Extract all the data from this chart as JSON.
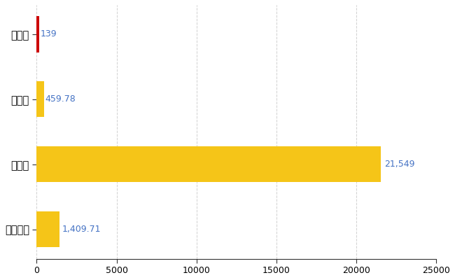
{
  "categories": [
    "別海町",
    "県平均",
    "県最大",
    "全国平均"
  ],
  "values": [
    139,
    459.78,
    21549,
    1409.71
  ],
  "bar_colors": [
    "#cc0000",
    "#f5c518",
    "#f5c518",
    "#f5c518"
  ],
  "bar_height": 0.55,
  "xlim": [
    0,
    25000
  ],
  "xticks": [
    0,
    5000,
    10000,
    15000,
    20000,
    25000
  ],
  "xtick_labels": [
    "0",
    "5000",
    "10000",
    "15000",
    "20000",
    "25000"
  ],
  "value_labels": [
    "139",
    "459.78",
    "21,549",
    "1,409.71"
  ],
  "value_label_color": "#4472c4",
  "grid_color": "#cccccc",
  "background_color": "#ffffff",
  "label_fontsize": 10.5,
  "tick_fontsize": 9,
  "value_fontsize": 9
}
